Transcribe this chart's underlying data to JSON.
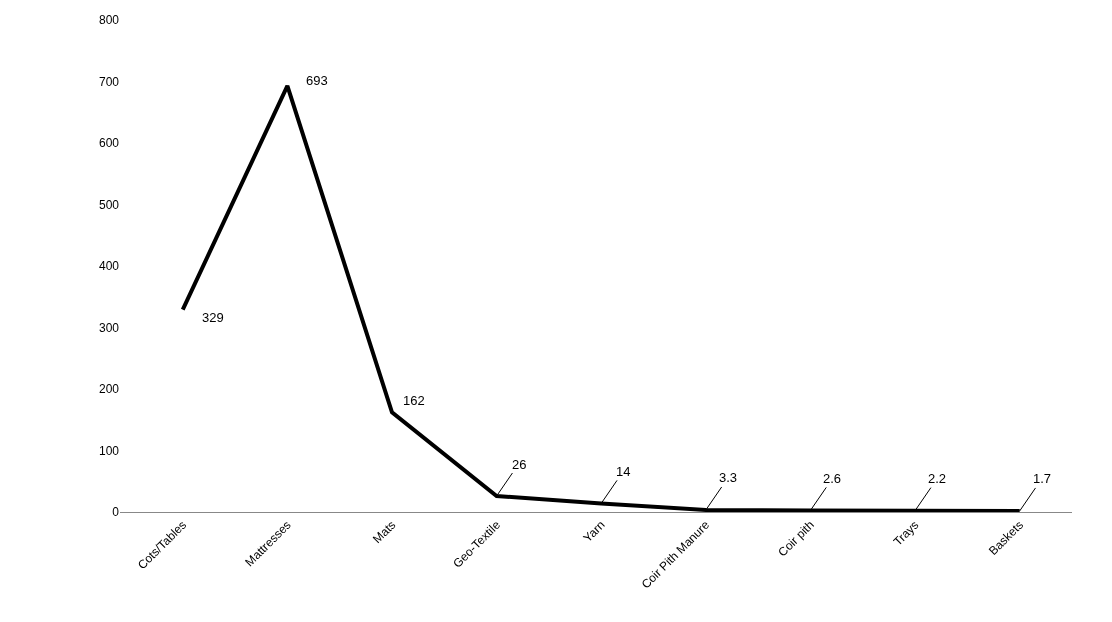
{
  "chart_data": {
    "type": "line",
    "categories": [
      "Cots/Tables",
      "Mattresses",
      "Mats",
      "Geo-Textile",
      "Yarn",
      "Coir Pith Manure",
      "Coir pith",
      "Trays",
      "Baskets"
    ],
    "series": [
      {
        "color": "#000000",
        "values": [
          329,
          693,
          162,
          26,
          14,
          3.3,
          2.6,
          2.2,
          1.7
        ]
      }
    ],
    "ylim": [
      0,
      800
    ],
    "yticks": [
      0,
      100,
      200,
      300,
      400,
      500,
      600,
      700,
      800
    ],
    "marker": "none",
    "line_style": "solid",
    "data_labels": true
  }
}
